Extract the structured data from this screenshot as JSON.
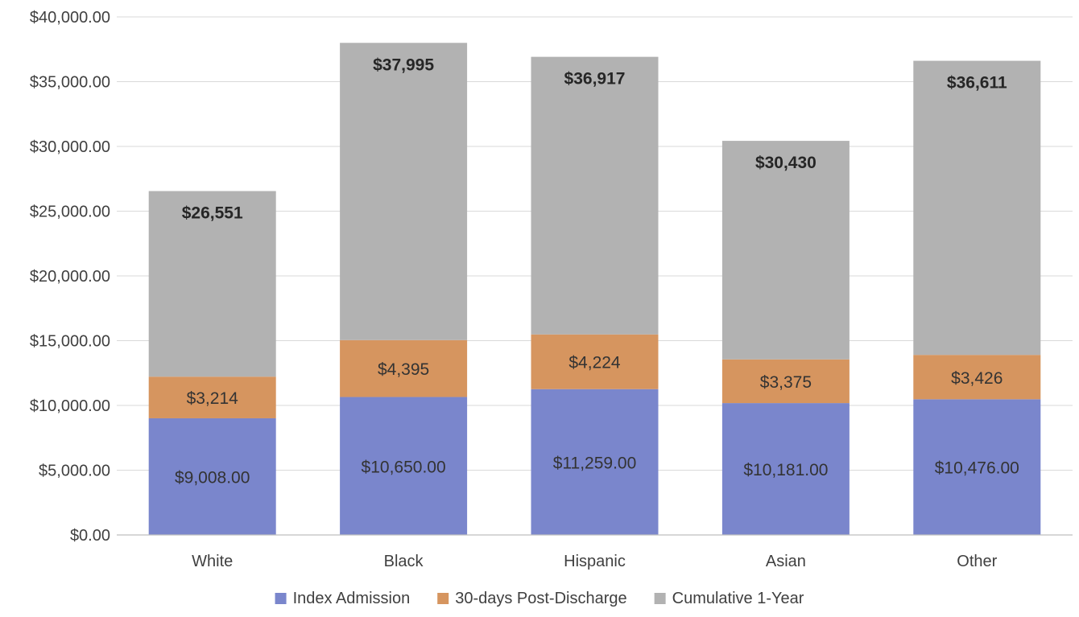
{
  "chart_data": {
    "type": "bar",
    "stacked": true,
    "title": "",
    "xlabel": "",
    "ylabel": "",
    "ylim": [
      0,
      40000
    ],
    "y_ticks": [
      0,
      5000,
      10000,
      15000,
      20000,
      25000,
      30000,
      35000,
      40000
    ],
    "y_tick_labels": [
      "$0.00",
      "$5,000.00",
      "$10,000.00",
      "$15,000.00",
      "$20,000.00",
      "$25,000.00",
      "$30,000.00",
      "$35,000.00",
      "$40,000.00"
    ],
    "grid": true,
    "legend_position": "bottom",
    "categories": [
      "White",
      "Black",
      "Hispanic",
      "Asian",
      "Other"
    ],
    "series": [
      {
        "name": "Index Admission",
        "color": "#7a86cc",
        "values": [
          9008,
          10650,
          11259,
          10181,
          10476
        ],
        "labels": [
          "$9,008.00",
          "$10,650.00",
          "$11,259.00",
          "$10,181.00",
          "$10,476.00"
        ]
      },
      {
        "name": "30-days Post-Discharge",
        "color": "#d6955f",
        "values": [
          3214,
          4395,
          4224,
          3375,
          3426
        ],
        "labels": [
          "$3,214",
          "$4,395",
          "$4,224",
          "$3,375",
          "$3,426"
        ]
      },
      {
        "name": "Cumulative 1-Year",
        "color": "#b2b2b2",
        "values": [
          14329,
          22950,
          21434,
          16874,
          22709
        ],
        "labels": []
      }
    ],
    "totals": [
      26551,
      37995,
      36917,
      30430,
      36611
    ],
    "total_labels": [
      "$26,551",
      "$37,995",
      "$36,917",
      "$30,430",
      "$36,611"
    ]
  }
}
